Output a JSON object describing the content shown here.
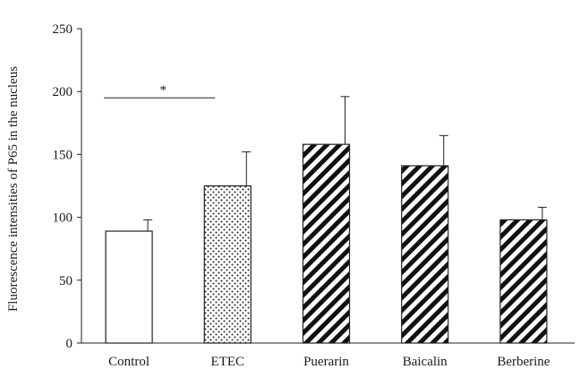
{
  "chart_data": {
    "type": "bar",
    "title": "",
    "xlabel": "",
    "ylabel": "Fluorescence intensities of P65 in the nucleus",
    "ylim": [
      0,
      250
    ],
    "yticks": [
      "0",
      "50",
      "100",
      "150",
      "200",
      "250"
    ],
    "categories": [
      "Control",
      "ETEC",
      "Puerarin",
      "Baicalin",
      "Berberine"
    ],
    "values": [
      89,
      125,
      158,
      141,
      98
    ],
    "errors": [
      9,
      27,
      38,
      24,
      10
    ],
    "patterns": [
      "none",
      "dots",
      "diagonal",
      "diagonal",
      "diagonal"
    ],
    "grid": false,
    "legend": "none",
    "annotations": [
      {
        "text": "*",
        "between": [
          "Control",
          "ETEC"
        ],
        "y": 195
      }
    ]
  }
}
